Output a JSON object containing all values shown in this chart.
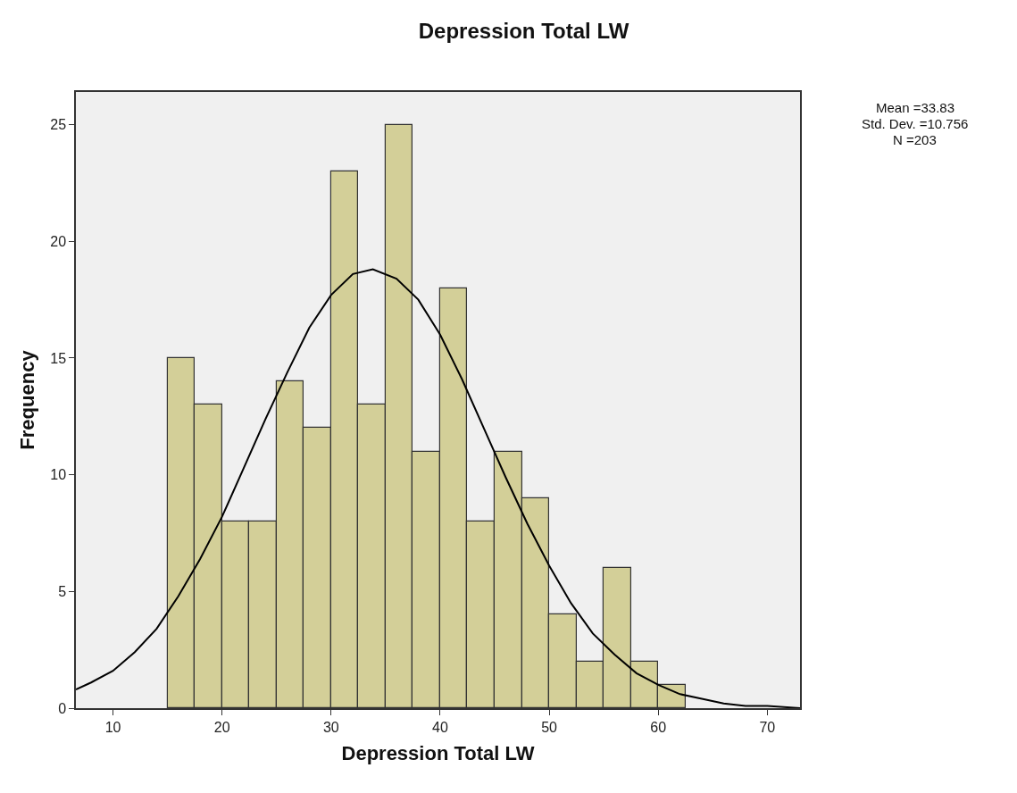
{
  "chart_data": {
    "type": "histogram",
    "title": "Depression Total LW",
    "xlabel": "Depression Total LW",
    "ylabel": "Frequency",
    "bins": [
      15,
      17.5,
      20,
      22.5,
      25,
      27.5,
      30,
      32.5,
      35,
      37.5,
      40,
      42.5,
      45,
      47.5,
      50,
      52.5,
      55,
      57.5,
      60,
      62.5
    ],
    "values": [
      15,
      13,
      8,
      8,
      14,
      12,
      23,
      13,
      25,
      11,
      18,
      8,
      11,
      9,
      4,
      2,
      6,
      2,
      1
    ],
    "color": "#d3cf98",
    "series": [
      {
        "type": "line",
        "color": "#000000",
        "x": [
          6.6,
          8,
          10,
          12,
          14,
          16,
          18,
          20,
          22,
          24,
          26,
          28,
          30,
          32,
          33.83,
          36,
          38,
          40,
          42,
          44,
          46,
          48,
          50,
          52,
          54,
          56,
          58,
          60,
          62,
          64,
          66,
          68,
          70,
          73
        ],
        "values": [
          0.8,
          1.1,
          1.6,
          2.4,
          3.4,
          4.8,
          6.4,
          8.2,
          10.3,
          12.4,
          14.4,
          16.3,
          17.7,
          18.6,
          18.8,
          18.4,
          17.5,
          16,
          14.1,
          12,
          9.9,
          7.9,
          6.1,
          4.5,
          3.2,
          2.3,
          1.5,
          1,
          0.6,
          0.4,
          0.2,
          0.1,
          0.1,
          0
        ]
      }
    ],
    "xlim": [
      6.6,
      73
    ],
    "xticks": [
      10,
      20,
      30,
      40,
      50,
      60,
      70
    ],
    "ylim": [
      0,
      26.4
    ],
    "yticks": [
      0,
      5,
      10,
      15,
      20,
      25
    ],
    "grid": false,
    "marker": "none",
    "line_style": "solid",
    "annotations": [
      "Mean =33.83",
      "Std. Dev. =10.756",
      "N =203"
    ]
  }
}
